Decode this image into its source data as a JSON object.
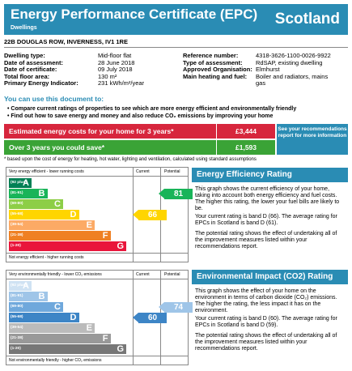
{
  "header": {
    "title": "Energy Performance Certificate (EPC)",
    "subtitle": "Dwellings",
    "country": "Scotland"
  },
  "address": "22B DOUGLAS ROW, INVERNESS, IV1 1RE",
  "details_left": [
    {
      "label": "Dwelling type:",
      "value": "Mid-floor flat"
    },
    {
      "label": "Date of assessment:",
      "value": "28 June 2018"
    },
    {
      "label": "Date of certificate:",
      "value": "09 July 2018"
    },
    {
      "label": "Total floor area:",
      "value": "130 m²"
    },
    {
      "label": "Primary Energy Indicator:",
      "value": "231 kWh/m²/year"
    }
  ],
  "details_right": [
    {
      "label": "Reference number:",
      "value": "4318-3626-1100-0026-9922"
    },
    {
      "label": "Type of assessment:",
      "value": "RdSAP, existing dwelling"
    },
    {
      "label": "Approved Organisation:",
      "value": "Elmhurst"
    },
    {
      "label": "Main heating and fuel:",
      "value": "Boiler and radiators, mains"
    },
    {
      "label": "",
      "value": "gas"
    }
  ],
  "use_title": "You can use this document to:",
  "bullets": [
    "• Compare current ratings of properties to see which are more energy efficient and environmentally friendly",
    "• Find out how to save energy and money and also reduce CO₂ emissions by improving your home"
  ],
  "costs": {
    "estimated_label": "Estimated energy costs for your home for 3 years*",
    "estimated_value": "£3,444",
    "save_label": "Over 3 years you could save*",
    "save_value": "£1,593",
    "see_box": "See your recommendations report for more information"
  },
  "footnote": "* based upon the cost of energy for heating, hot water, lighting and ventilation, calculated using standard assumptions",
  "ee_chart": {
    "top_label": "Very energy efficient - lower running costs",
    "bottom_label": "Not energy efficient - higher running costs",
    "col_current": "Current",
    "col_potential": "Potential",
    "bands": [
      {
        "range": "(92 plus)",
        "letter": "A",
        "color": "#008054"
      },
      {
        "range": "(81-91)",
        "letter": "B",
        "color": "#19b459"
      },
      {
        "range": "(69-80)",
        "letter": "C",
        "color": "#8dce46"
      },
      {
        "range": "(55-68)",
        "letter": "D",
        "color": "#ffd500"
      },
      {
        "range": "(39-54)",
        "letter": "E",
        "color": "#fcaa65"
      },
      {
        "range": "(21-38)",
        "letter": "F",
        "color": "#ef8023"
      },
      {
        "range": "(1-20)",
        "letter": "G",
        "color": "#e9153b"
      }
    ],
    "current": "66",
    "current_band": 3,
    "current_color": "#ffd500",
    "potential": "81",
    "potential_band": 1,
    "potential_color": "#19b459"
  },
  "ei_chart": {
    "top_label": "Very environmentally friendly - lower CO₂ emissions",
    "bottom_label": "Not environmentally friendly - higher CO₂ emissions",
    "col_current": "Current",
    "col_potential": "Potential",
    "bands": [
      {
        "range": "(92 plus)",
        "letter": "A",
        "color": "#cfe2f3"
      },
      {
        "range": "(81-91)",
        "letter": "B",
        "color": "#9fc5e8"
      },
      {
        "range": "(69-80)",
        "letter": "C",
        "color": "#6fa8dc"
      },
      {
        "range": "(55-68)",
        "letter": "D",
        "color": "#3d85c6"
      },
      {
        "range": "(39-54)",
        "letter": "E",
        "color": "#bbbbbb"
      },
      {
        "range": "(21-38)",
        "letter": "F",
        "color": "#999999"
      },
      {
        "range": "(1-20)",
        "letter": "G",
        "color": "#777777"
      }
    ],
    "current": "60",
    "current_band": 3,
    "current_color": "#3d85c6",
    "potential": "74",
    "potential_band": 2,
    "potential_color": "#9fc5e8"
  },
  "ee_panel": {
    "title": "Energy Efficiency Rating",
    "p1": "This graph shows the current efficiency of your home, taking into account both energy efficiency and fuel costs. The higher this rating, the lower your fuel bills are likely to be.",
    "p2": "Your current rating is band D (66). The average rating for EPCs in Scotland is band D (61).",
    "p3": "The potential rating shows the effect of undertaking all of the improvement measures listed within your recommendations report."
  },
  "ei_panel": {
    "title": "Environmental Impact (CO2) Rating",
    "p1": "This graph shows the effect of your home on the environment in terms of carbon dioxide (CO₂) emissions. The higher the rating, the less impact it has on the environment.",
    "p2": "Your current rating is band D (60). The average rating for EPCs in Scotland is band D (59).",
    "p3": "The potential rating shows the effect of undertaking all of the improvement measures listed within your recommendations report."
  }
}
